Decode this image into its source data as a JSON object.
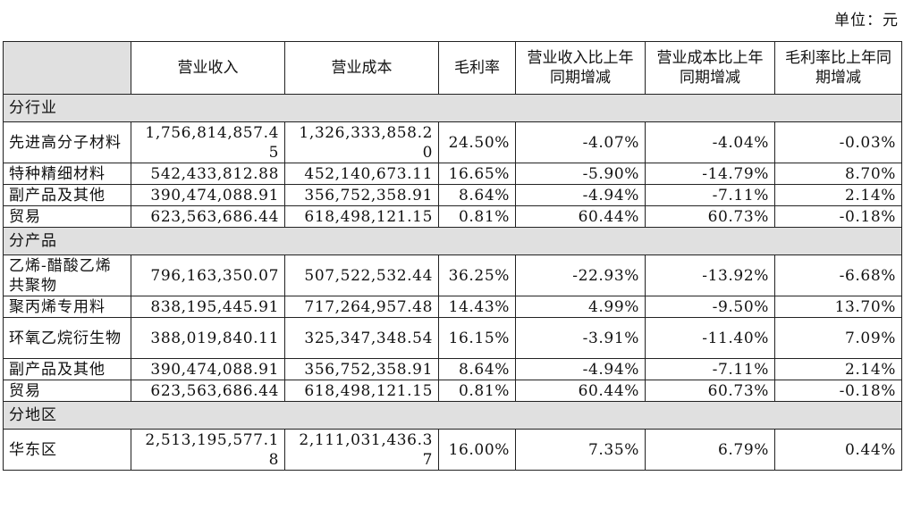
{
  "unit_label": "单位：元",
  "headers": [
    "",
    "营业收入",
    "营业成本",
    "毛利率",
    "营业收入比上年同期增减",
    "营业成本比上年同期增减",
    "毛利率比上年同期增减"
  ],
  "sections": [
    {
      "title": "分行业",
      "rows": [
        {
          "name": "先进高分子材料",
          "revenue": "1,756,814,857.45",
          "cost": "1,326,333,858.20",
          "margin": "24.50%",
          "rev_change": "-4.07%",
          "cost_change": "-4.04%",
          "margin_change": "-0.03%"
        },
        {
          "name": "特种精细材料",
          "revenue": "542,433,812.88",
          "cost": "452,140,673.11",
          "margin": "16.65%",
          "rev_change": "-5.90%",
          "cost_change": "-14.79%",
          "margin_change": "8.70%"
        },
        {
          "name": "副产品及其他",
          "revenue": "390,474,088.91",
          "cost": "356,752,358.91",
          "margin": "8.64%",
          "rev_change": "-4.94%",
          "cost_change": "-7.11%",
          "margin_change": "2.14%"
        },
        {
          "name": "贸易",
          "revenue": "623,563,686.44",
          "cost": "618,498,121.15",
          "margin": "0.81%",
          "rev_change": "60.44%",
          "cost_change": "60.73%",
          "margin_change": "-0.18%"
        }
      ]
    },
    {
      "title": "分产品",
      "rows": [
        {
          "name": "乙烯-醋酸乙烯共聚物",
          "revenue": "796,163,350.07",
          "cost": "507,522,532.44",
          "margin": "36.25%",
          "rev_change": "-22.93%",
          "cost_change": "-13.92%",
          "margin_change": "-6.68%"
        },
        {
          "name": "聚丙烯专用料",
          "revenue": "838,195,445.91",
          "cost": "717,264,957.48",
          "margin": "14.43%",
          "rev_change": "4.99%",
          "cost_change": "-9.50%",
          "margin_change": "13.70%"
        },
        {
          "name": "环氧乙烷衍生物",
          "revenue": "388,019,840.11",
          "cost": "325,347,348.54",
          "margin": "16.15%",
          "rev_change": "-3.91%",
          "cost_change": "-11.40%",
          "margin_change": "7.09%"
        },
        {
          "name": "副产品及其他",
          "revenue": "390,474,088.91",
          "cost": "356,752,358.91",
          "margin": "8.64%",
          "rev_change": "-4.94%",
          "cost_change": "-7.11%",
          "margin_change": "2.14%"
        },
        {
          "name": "贸易",
          "revenue": "623,563,686.44",
          "cost": "618,498,121.15",
          "margin": "0.81%",
          "rev_change": "60.44%",
          "cost_change": "60.73%",
          "margin_change": "-0.18%"
        }
      ]
    },
    {
      "title": "分地区",
      "rows": [
        {
          "name": "华东区",
          "revenue": "2,513,195,577.18",
          "cost": "2,111,031,436.37",
          "margin": "16.00%",
          "rev_change": "7.35%",
          "cost_change": "6.79%",
          "margin_change": "0.44%"
        }
      ]
    }
  ]
}
